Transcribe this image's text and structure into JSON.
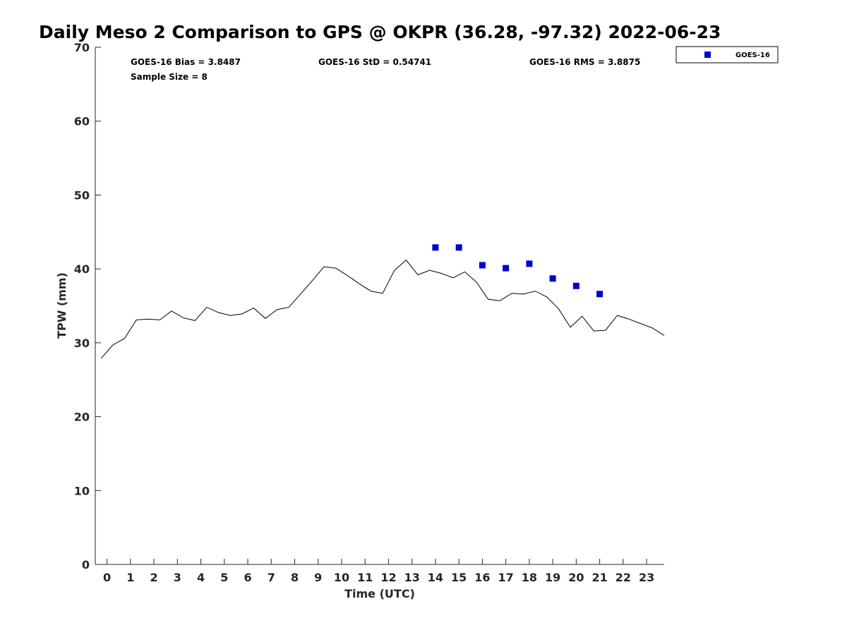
{
  "chart_data": {
    "type": "line",
    "title": "Daily Meso 2 Comparison to GPS @ OKPR (36.28, -97.32) 2022-06-23",
    "xlabel": "Time (UTC)",
    "ylabel": "TPW (mm)",
    "xlim": [
      -0.5,
      23.75
    ],
    "ylim": [
      0,
      70
    ],
    "x_ticks": [
      0,
      1,
      2,
      3,
      4,
      5,
      6,
      7,
      8,
      9,
      10,
      11,
      12,
      13,
      14,
      15,
      16,
      17,
      18,
      19,
      20,
      21,
      22,
      23
    ],
    "y_ticks": [
      0,
      10,
      20,
      30,
      40,
      50,
      60,
      70
    ],
    "grid": false,
    "legend_position": "top-right-outside",
    "series": [
      {
        "kind": "line",
        "color": "#000000",
        "x": [
          -0.25,
          0.25,
          0.75,
          1.25,
          1.75,
          2.25,
          2.75,
          3.25,
          3.75,
          4.25,
          4.75,
          5.25,
          5.75,
          6.25,
          6.75,
          7.25,
          7.75,
          8.25,
          8.75,
          9.25,
          9.75,
          10.25,
          10.75,
          11.25,
          11.75,
          12.25,
          12.75,
          13.25,
          13.75,
          14.25,
          14.75,
          15.25,
          15.75,
          16.25,
          16.75,
          17.25,
          17.75,
          18.25,
          18.75,
          19.25,
          19.75,
          20.25,
          20.75,
          21.25,
          21.75,
          22.25,
          22.75,
          23.25,
          23.75
        ],
        "values": [
          27.9,
          29.7,
          30.6,
          33.1,
          33.2,
          33.1,
          34.3,
          33.4,
          33.0,
          34.8,
          34.1,
          33.7,
          33.9,
          34.7,
          33.3,
          34.5,
          34.8,
          36.6,
          38.4,
          40.3,
          40.1,
          39.1,
          38.0,
          37.0,
          36.7,
          39.8,
          41.2,
          39.2,
          39.8,
          39.4,
          38.8,
          39.6,
          38.2,
          35.9,
          35.7,
          36.7,
          36.6,
          37.0,
          36.2,
          34.6,
          32.1,
          33.6,
          31.6,
          31.7,
          33.7,
          33.2,
          32.6,
          32.0,
          31.0
        ]
      },
      {
        "name": "GOES-16",
        "kind": "scatter",
        "marker": "square",
        "color": "#0000cc",
        "x": [
          14,
          15,
          16,
          17,
          18,
          19,
          20,
          21
        ],
        "values": [
          42.9,
          42.9,
          40.5,
          40.1,
          40.7,
          38.7,
          37.7,
          36.6
        ]
      }
    ],
    "annotations": {
      "bias": "GOES-16 Bias = 3.8487",
      "std": "GOES-16 StD = 0.54741",
      "rms": "GOES-16 RMS = 3.8875",
      "sample_size": "Sample Size = 8"
    }
  }
}
